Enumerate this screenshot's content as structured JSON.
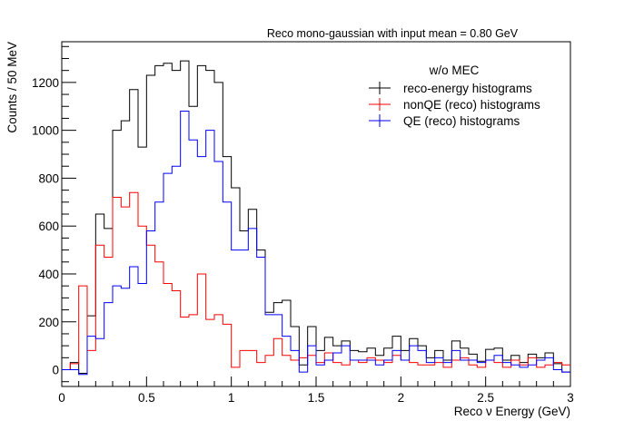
{
  "chart_data": {
    "type": "histogram",
    "title": "Reco mono-gaussian with input mean = 0.80 GeV",
    "xlabel": "Reco ν Energy (GeV)",
    "ylabel": "Counts / 50 MeV",
    "xlim": [
      0,
      3
    ],
    "ylim": [
      -70,
      1370
    ],
    "bin_width": 0.05,
    "x_ticks": [
      0,
      0.5,
      1,
      1.5,
      2,
      2.5,
      3
    ],
    "x_tick_labels": [
      "0",
      "0.5",
      "1",
      "1.5",
      "2",
      "2.5",
      "3"
    ],
    "y_ticks": [
      0,
      200,
      400,
      600,
      800,
      1000,
      1200
    ],
    "y_tick_labels": [
      "0",
      "200",
      "400",
      "600",
      "800",
      "1000",
      "1200"
    ],
    "legend": {
      "title": "w/o MEC",
      "placement": "top-right"
    },
    "series": [
      {
        "name": "reco-energy histograms",
        "color": "#000000",
        "values": [
          0,
          30,
          -15,
          225,
          650,
          590,
          1000,
          1040,
          1170,
          930,
          1230,
          1270,
          1280,
          1250,
          1290,
          1100,
          1270,
          1250,
          1200,
          890,
          760,
          580,
          670,
          500,
          240,
          280,
          290,
          180,
          20,
          180,
          80,
          135,
          100,
          120,
          80,
          75,
          90,
          60,
          90,
          140,
          80,
          130,
          100,
          50,
          80,
          40,
          120,
          90,
          65,
          35,
          85,
          90,
          40,
          60,
          30,
          65,
          50,
          70,
          25,
          -10
        ]
      },
      {
        "name": "nonQE (reco) histograms",
        "color": "#ff0000",
        "values": [
          0,
          25,
          350,
          80,
          520,
          470,
          720,
          680,
          740,
          600,
          520,
          450,
          360,
          330,
          220,
          230,
          400,
          210,
          230,
          190,
          10,
          80,
          80,
          30,
          60,
          130,
          60,
          40,
          50,
          60,
          30,
          70,
          30,
          20,
          40,
          30,
          50,
          40,
          30,
          60,
          40,
          30,
          20,
          20,
          30,
          10,
          40,
          50,
          20,
          10,
          40,
          30,
          10,
          40,
          20,
          50,
          10,
          20,
          30,
          20
        ]
      },
      {
        "name": "QE (reco) histograms",
        "color": "#0000ff",
        "values": [
          0,
          0,
          -20,
          140,
          130,
          280,
          350,
          340,
          430,
          360,
          580,
          700,
          820,
          850,
          1080,
          960,
          890,
          1000,
          870,
          700,
          500,
          500,
          590,
          470,
          230,
          230,
          140,
          80,
          -10,
          100,
          20,
          40,
          70,
          100,
          40,
          40,
          40,
          20,
          40,
          80,
          40,
          100,
          80,
          30,
          50,
          30,
          80,
          40,
          40,
          30,
          40,
          60,
          30,
          20,
          10,
          20,
          40,
          50,
          0,
          -10
        ]
      }
    ]
  }
}
